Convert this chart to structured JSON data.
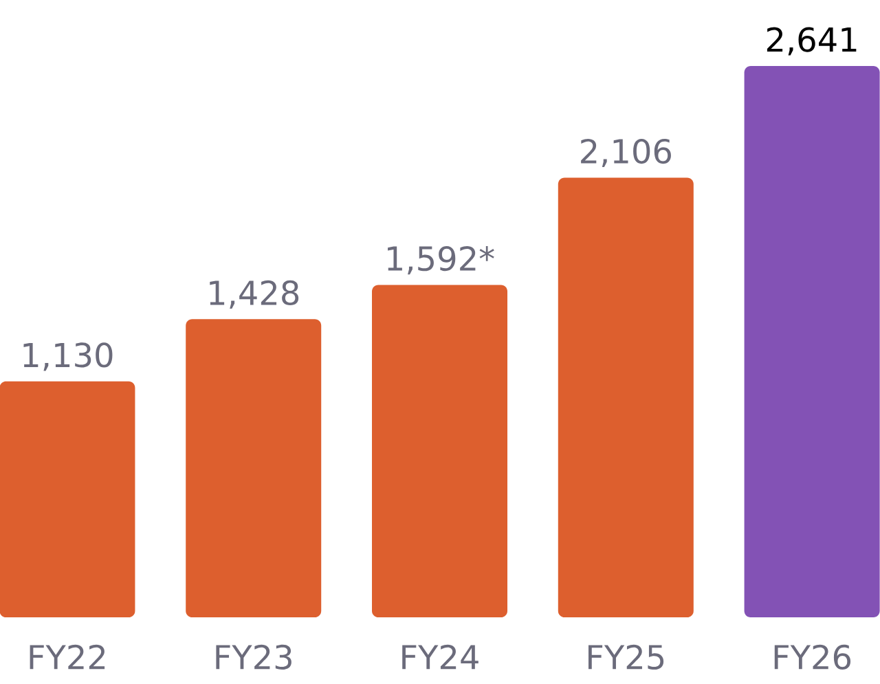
{
  "chart_data": {
    "type": "bar",
    "categories": [
      "FY22",
      "FY23",
      "FY24",
      "FY25",
      "FY26"
    ],
    "values": [
      1130,
      1428,
      1592,
      2106,
      2641
    ],
    "value_labels": [
      "1,130",
      "1,428",
      "1,592*",
      "2,106",
      "2,641"
    ],
    "colors": [
      "#dd5f2e",
      "#dd5f2e",
      "#dd5f2e",
      "#dd5f2e",
      "#8352b5"
    ],
    "tick_labels": "x"
  }
}
